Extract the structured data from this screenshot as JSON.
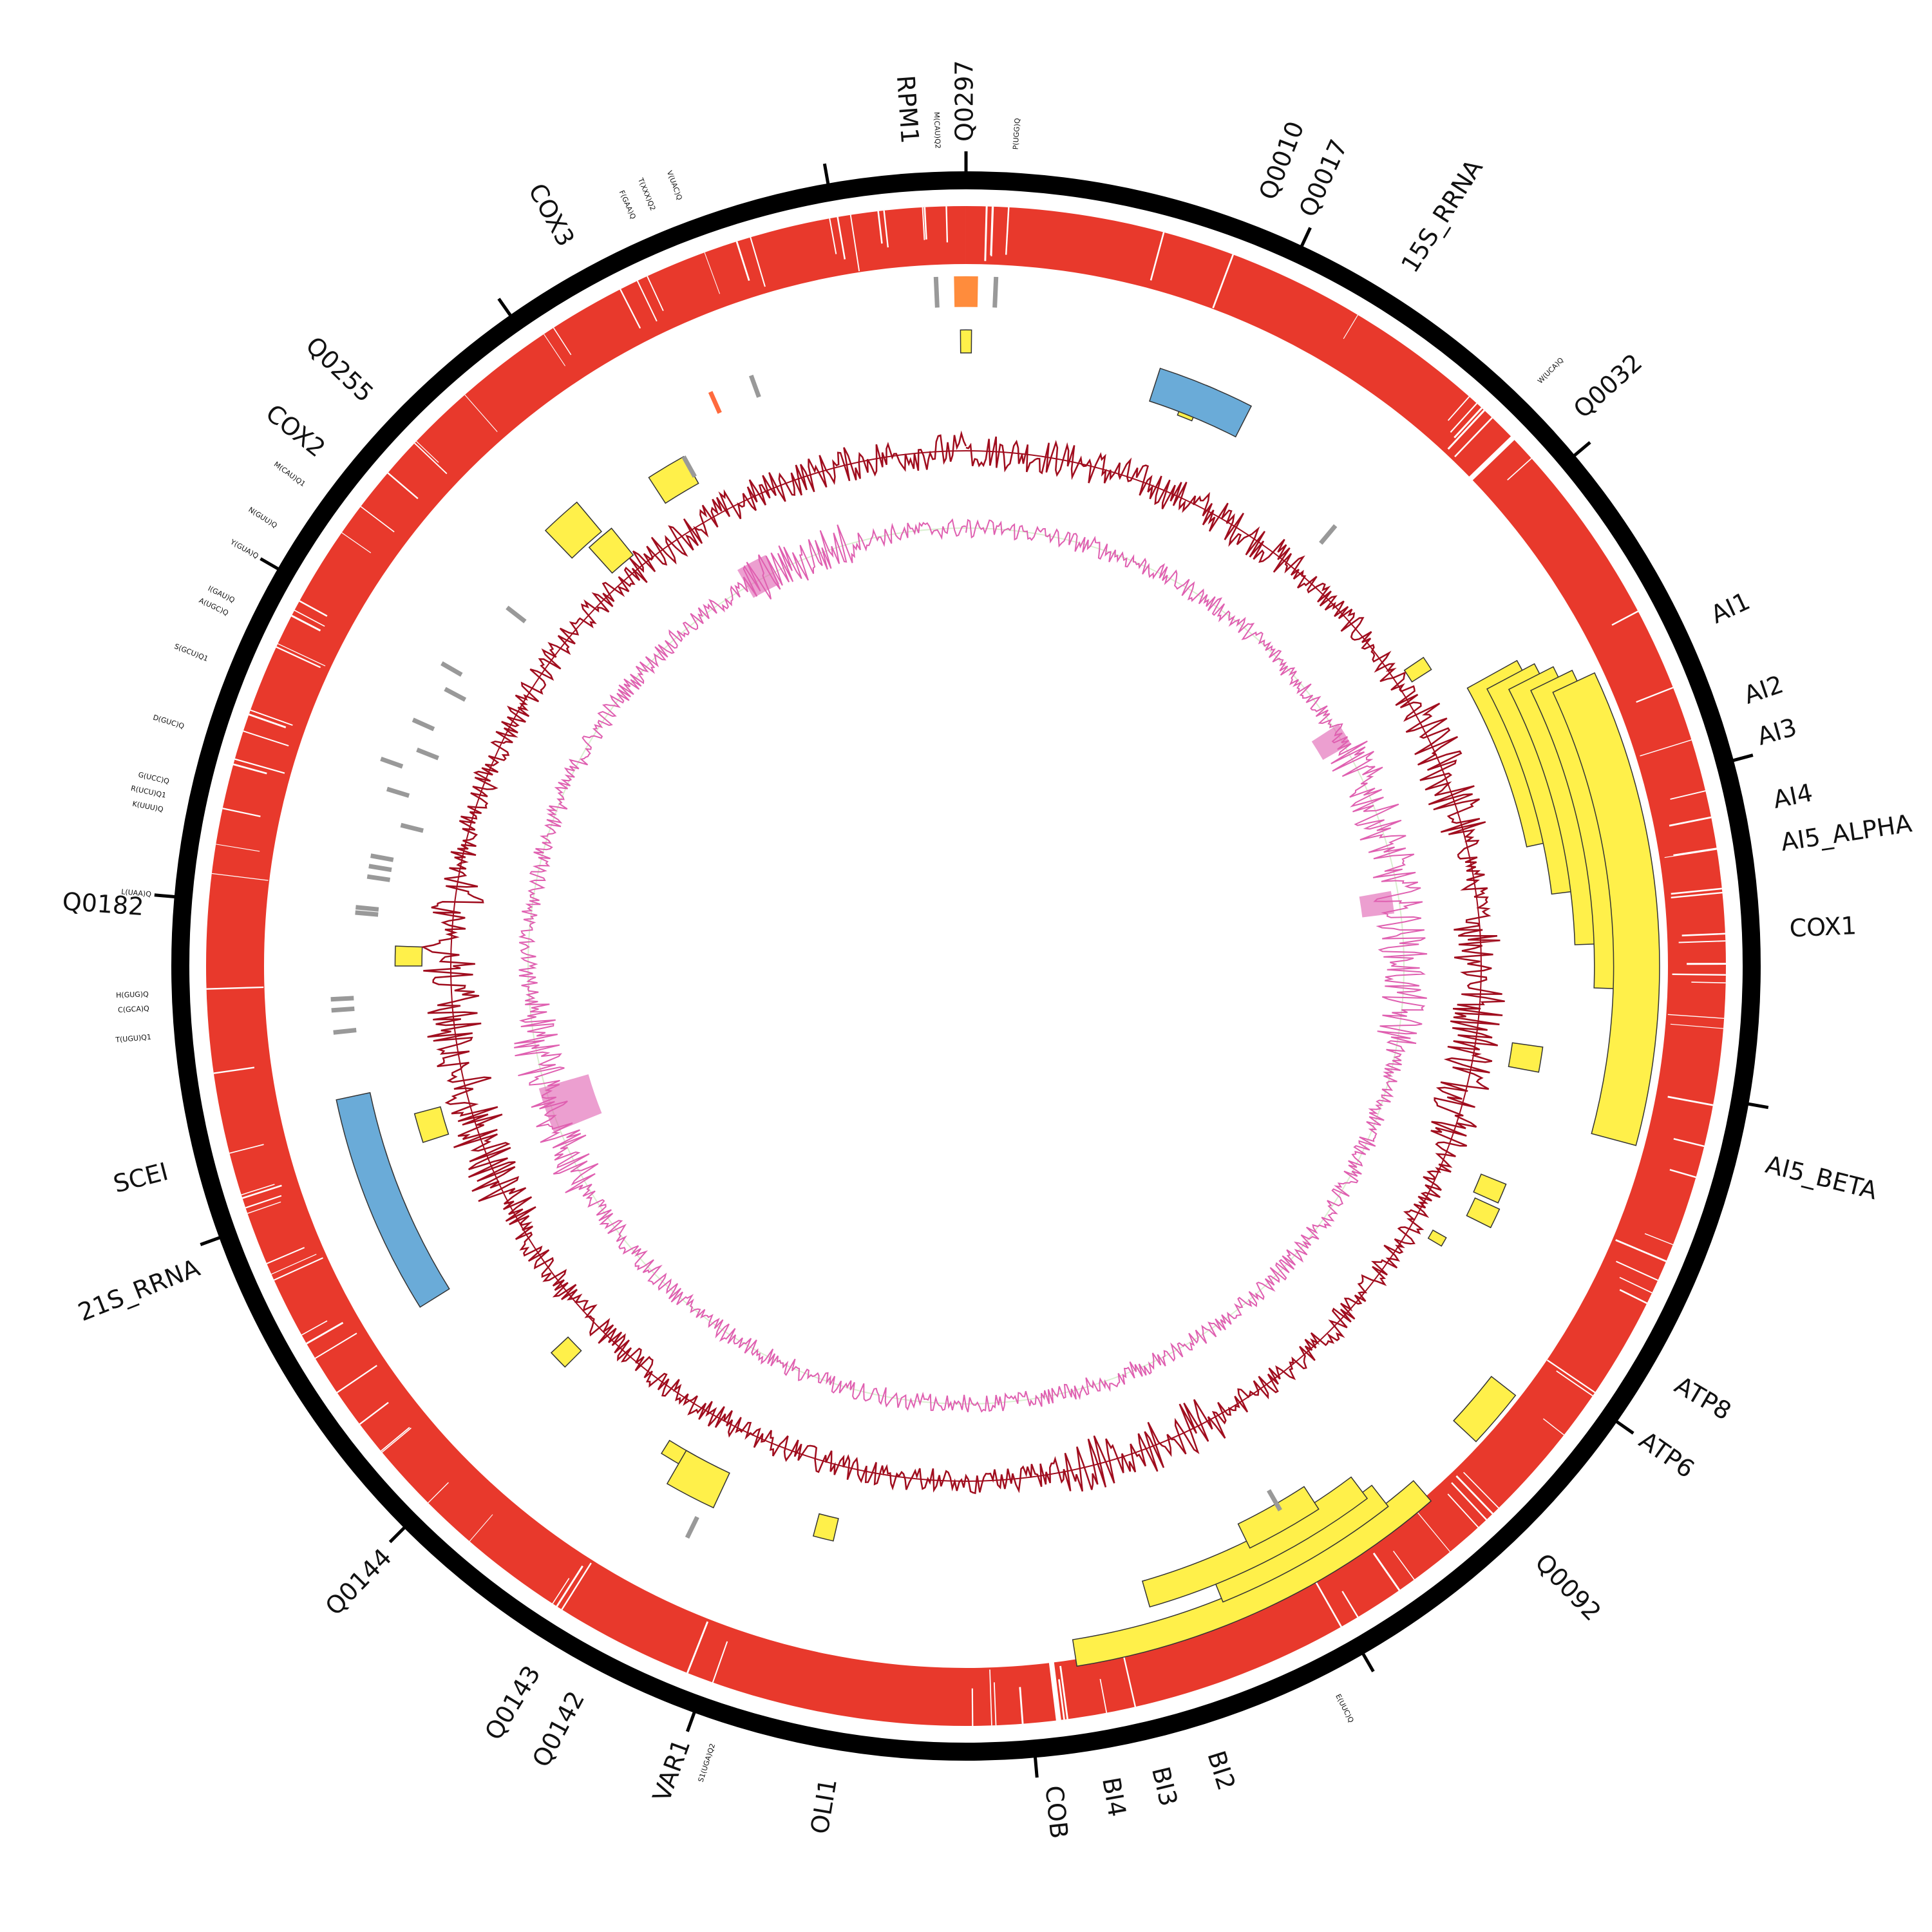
{
  "colors": {
    "backbone": "#000000",
    "coverage": "#e8392c",
    "gene_box": "#fff04a",
    "rrna_box": "#6aabd8",
    "trna_bar": "#999999",
    "trna_bar_highlight": "#ff6a3d",
    "orf_box": "#ff8c3c",
    "gc_content": "#a00d1e",
    "gc_skew_pos": "#df5fb0",
    "gc_skew_neg": "#d9efd0"
  },
  "labels": {
    "genes": [
      {
        "text": "Q0297",
        "angle": 0.0
      },
      {
        "text": "RPM1",
        "angle": 356.0
      },
      {
        "text": "Q0010",
        "angle": 21.5
      },
      {
        "text": "Q0017",
        "angle": 24.5
      },
      {
        "text": "15S_RRNA",
        "angle": 32.5
      },
      {
        "text": "Q0032",
        "angle": 48.0
      },
      {
        "text": "AI1",
        "angle": 65.0
      },
      {
        "text": "AI2",
        "angle": 71.0
      },
      {
        "text": "AI3",
        "angle": 74.0
      },
      {
        "text": "AI4",
        "angle": 78.5
      },
      {
        "text": "AI5_ALPHA",
        "angle": 81.5
      },
      {
        "text": "COX1",
        "angle": 87.5
      },
      {
        "text": "AI5_BETA",
        "angle": 104.0
      },
      {
        "text": "ATP8",
        "angle": 120.5
      },
      {
        "text": "ATP6",
        "angle": 125.0
      },
      {
        "text": "Q0092",
        "angle": 136.0
      },
      {
        "text": "BI2",
        "angle": 162.5
      },
      {
        "text": "BI3",
        "angle": 166.5
      },
      {
        "text": "BI4",
        "angle": 170.0
      },
      {
        "text": "COB",
        "angle": 174.0
      },
      {
        "text": "OLI1",
        "angle": 189.5
      },
      {
        "text": "VAR1",
        "angle": 200.0
      },
      {
        "text": "Q0142",
        "angle": 208.0
      },
      {
        "text": "Q0143",
        "angle": 211.5
      },
      {
        "text": "Q0144",
        "angle": 224.5
      },
      {
        "text": "21S_RRNA",
        "angle": 248.5
      },
      {
        "text": "SCEI",
        "angle": 255.5
      },
      {
        "text": "Q0182",
        "angle": 274.0
      },
      {
        "text": "COX2",
        "angle": 308.5
      },
      {
        "text": "Q0255",
        "angle": 313.5
      },
      {
        "text": "COX3",
        "angle": 331.0
      }
    ],
    "trnas": [
      {
        "text": "M(CAU)Q2",
        "angle": 358.0
      },
      {
        "text": "P(UGG)Q",
        "angle": 3.5
      },
      {
        "text": "W(UCA)Q",
        "angle": 44.5
      },
      {
        "text": "E(UUC)Q",
        "angle": 153.0
      },
      {
        "text": "S1(UGA)Q2",
        "angle": 198.0
      },
      {
        "text": "T(UGU)Q1",
        "angle": 265.0
      },
      {
        "text": "C(GCA)Q",
        "angle": 267.0
      },
      {
        "text": "H(GUG)Q",
        "angle": 268.0
      },
      {
        "text": "L(UAA)Q",
        "angle": 275.0
      },
      {
        "text": "K(UUU)Q",
        "angle": 281.0
      },
      {
        "text": "R(UCU)Q1",
        "angle": 282.0
      },
      {
        "text": "G(UCC)Q",
        "angle": 283.0
      },
      {
        "text": "D(GUC)Q",
        "angle": 287.0
      },
      {
        "text": "S(GCU)Q1",
        "angle": 292.0
      },
      {
        "text": "A(UGC)Q",
        "angle": 295.5
      },
      {
        "text": "I(GAU)Q",
        "angle": 296.5
      },
      {
        "text": "Y(GUA)Q",
        "angle": 300.0
      },
      {
        "text": "N(GUU)Q",
        "angle": 302.5
      },
      {
        "text": "M(CAU)Q1",
        "angle": 306.0
      },
      {
        "text": "F(GAA)Q",
        "angle": 336.0
      },
      {
        "text": "T(XXX)Q2",
        "angle": 337.5
      },
      {
        "text": "V(UAC)Q",
        "angle": 339.5
      }
    ]
  },
  "ticks": [
    0,
    25,
    50,
    75,
    100,
    125,
    150,
    175,
    200,
    225,
    250,
    275,
    300,
    325,
    350
  ],
  "features": {
    "gene_boxes": [
      {
        "start": 61,
        "end": 78,
        "inner": 0.748,
        "outer": 0.822
      },
      {
        "start": 62,
        "end": 83,
        "inner": 0.77,
        "outer": 0.84
      },
      {
        "start": 63,
        "end": 88,
        "inner": 0.795,
        "outer": 0.86
      },
      {
        "start": 64,
        "end": 92,
        "inner": 0.82,
        "outer": 0.88
      },
      {
        "start": 65,
        "end": 105,
        "inner": 0.845,
        "outer": 0.905
      },
      {
        "start": 128,
        "end": 133,
        "inner": 0.87,
        "outer": 0.91
      },
      {
        "start": 139,
        "end": 171,
        "inner": 0.89,
        "outer": 0.925
      },
      {
        "start": 142,
        "end": 158,
        "inner": 0.86,
        "outer": 0.895
      },
      {
        "start": 143,
        "end": 164,
        "inner": 0.835,
        "outer": 0.87
      },
      {
        "start": 147,
        "end": 154,
        "inner": 0.81,
        "outer": 0.845
      },
      {
        "start": 98,
        "end": 100.5,
        "inner": 0.72,
        "outer": 0.76
      },
      {
        "start": 112,
        "end": 114,
        "inner": 0.725,
        "outer": 0.76
      },
      {
        "start": 114.5,
        "end": 116.5,
        "inner": 0.73,
        "outer": 0.765
      },
      {
        "start": 119.5,
        "end": 120.5,
        "inner": 0.7,
        "outer": 0.72
      },
      {
        "start": 56,
        "end": 57.5,
        "inner": 0.69,
        "outer": 0.72
      },
      {
        "start": 21,
        "end": 22.5,
        "inner": 0.77,
        "outer": 0.8
      },
      {
        "start": 22.5,
        "end": 23.5,
        "inner": 0.795,
        "outer": 0.82
      },
      {
        "start": -0.5,
        "end": 0.5,
        "inner": 0.8,
        "outer": 0.83
      },
      {
        "start": 327,
        "end": 331,
        "inner": 0.72,
        "outer": 0.76
      },
      {
        "start": 316,
        "end": 320,
        "inner": 0.74,
        "outer": 0.79
      },
      {
        "start": 318,
        "end": 321,
        "inner": 0.69,
        "outer": 0.735
      },
      {
        "start": 270,
        "end": 272,
        "inner": 0.71,
        "outer": 0.745
      },
      {
        "start": 252,
        "end": 255,
        "inner": 0.71,
        "outer": 0.745
      },
      {
        "start": 225,
        "end": 227,
        "inner": 0.71,
        "outer": 0.74
      },
      {
        "start": 209,
        "end": 212,
        "inner": 0.73,
        "outer": 0.75
      },
      {
        "start": 205,
        "end": 210,
        "inner": 0.73,
        "outer": 0.78
      },
      {
        "start": 193,
        "end": 195,
        "inner": 0.74,
        "outer": 0.77
      }
    ],
    "rrna_boxes": [
      {
        "start": 18,
        "end": 27,
        "inner": 0.775,
        "outer": 0.82
      },
      {
        "start": 238,
        "end": 258,
        "inner": 0.795,
        "outer": 0.84
      }
    ],
    "orf_boxes": [
      {
        "start": -1,
        "end": 1,
        "inner": 0.86,
        "outer": 0.9
      }
    ],
    "trna_marks": [
      {
        "angle": -2.5,
        "inner": 0.86,
        "outer": 0.9
      },
      {
        "angle": 2.5,
        "inner": 0.86,
        "outer": 0.9
      },
      {
        "angle": 40.0,
        "inner": 0.72,
        "outer": 0.75
      },
      {
        "angle": 331.0,
        "inner": 0.73,
        "outer": 0.76
      },
      {
        "angle": 336.0,
        "inner": 0.79,
        "outer": 0.82
      },
      {
        "angle": 340.0,
        "inner": 0.79,
        "outer": 0.82
      },
      {
        "angle": 308.0,
        "inner": 0.73,
        "outer": 0.76
      },
      {
        "angle": 300.0,
        "inner": 0.76,
        "outer": 0.79
      },
      {
        "angle": 298.0,
        "inner": 0.74,
        "outer": 0.77
      },
      {
        "angle": 294.0,
        "inner": 0.76,
        "outer": 0.79
      },
      {
        "angle": 291.5,
        "inner": 0.74,
        "outer": 0.77
      },
      {
        "angle": 289.5,
        "inner": 0.78,
        "outer": 0.81
      },
      {
        "angle": 287.0,
        "inner": 0.76,
        "outer": 0.79
      },
      {
        "angle": 284.0,
        "inner": 0.73,
        "outer": 0.76
      },
      {
        "angle": 280.5,
        "inner": 0.76,
        "outer": 0.79
      },
      {
        "angle": 279.5,
        "inner": 0.76,
        "outer": 0.79
      },
      {
        "angle": 278.5,
        "inner": 0.76,
        "outer": 0.79
      },
      {
        "angle": 275.5,
        "inner": 0.77,
        "outer": 0.8
      },
      {
        "angle": 275.0,
        "inner": 0.77,
        "outer": 0.8
      },
      {
        "angle": 267.0,
        "inner": 0.8,
        "outer": 0.83
      },
      {
        "angle": 266.0,
        "inner": 0.8,
        "outer": 0.83
      },
      {
        "angle": 264.0,
        "inner": 0.8,
        "outer": 0.83
      },
      {
        "angle": 150.0,
        "inner": 0.79,
        "outer": 0.82
      },
      {
        "angle": 206.0,
        "inner": 0.8,
        "outer": 0.83
      }
    ]
  }
}
